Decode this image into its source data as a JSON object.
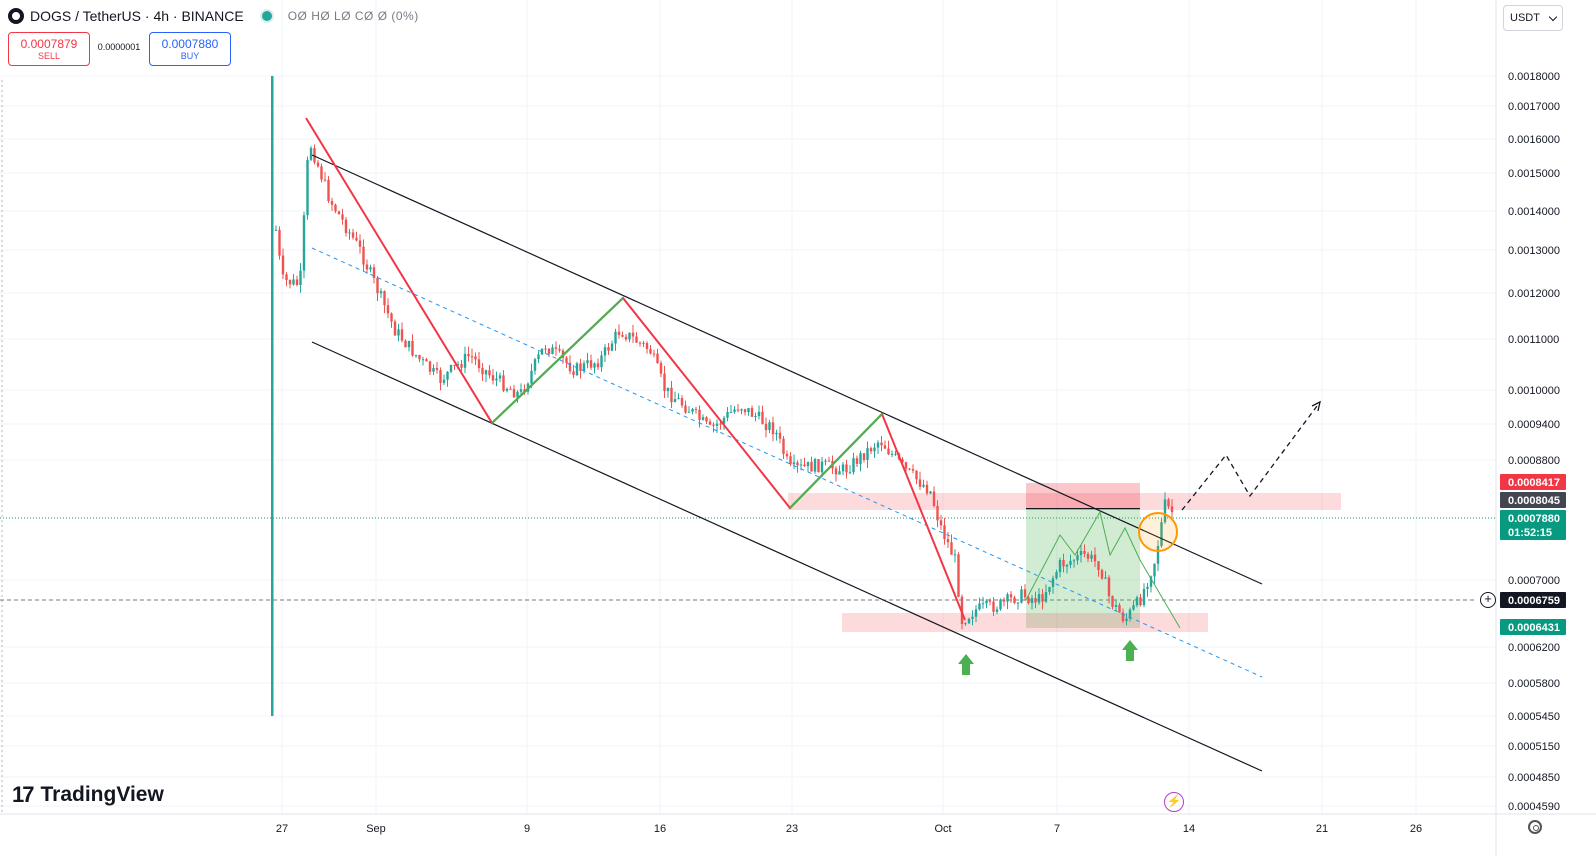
{
  "header": {
    "symbol": "DOGS",
    "separator": "/",
    "quote": "TetherUS",
    "interval": "4h",
    "exchange": "BINANCE",
    "title": "DOGS / TetherUS · 4h · BINANCE",
    "ohlc": "OØ HØ LØ CØ Ø (0%)"
  },
  "trade": {
    "sell_price": "0.0007879",
    "sell_label": "SELL",
    "spread": "0.0000001",
    "buy_price": "0.0007880",
    "buy_label": "BUY"
  },
  "currency": {
    "label": "USDT"
  },
  "brand": {
    "name": "TradingView",
    "mark": "17"
  },
  "colors": {
    "up": "#26a69a",
    "down": "#ef5350",
    "price_line": "#089981",
    "red_label": "#f23645",
    "dark_label": "#434651",
    "green_label": "#089981"
  },
  "price_axis": {
    "ticks": [
      "0.0018000",
      "0.0017000",
      "0.0016000",
      "0.0015000",
      "0.0014000",
      "0.0013000",
      "0.0012000",
      "0.0011000",
      "0.0010000",
      "0.0009400",
      "0.0008800",
      "0.0007000",
      "0.0006200",
      "0.0005800",
      "0.0005450",
      "0.0005150",
      "0.0004850",
      "0.0004590"
    ],
    "labels": [
      {
        "text": "0.0008417",
        "bg": "#f23645"
      },
      {
        "text": "0.0008045",
        "bg": "#434651"
      },
      {
        "text": "0.0007880",
        "bg": "#089981"
      },
      {
        "text": "01:52:15",
        "bg": "#089981"
      },
      {
        "text": "0.0006759",
        "bg": "#131722"
      },
      {
        "text": "0.0006431",
        "bg": "#089981"
      }
    ]
  },
  "time_axis": {
    "ticks": [
      "27",
      "Sep",
      "9",
      "16",
      "23",
      "Oct",
      "7",
      "14",
      "21",
      "26"
    ]
  },
  "chart_data": {
    "type": "candlestick",
    "symbol": "DOGS/USDT",
    "timeframe": "4h",
    "x_ticks": [
      "27",
      "Sep",
      "9",
      "16",
      "23",
      "Oct",
      "7",
      "14",
      "21",
      "26"
    ],
    "y_ticks": [
      0.0018,
      0.0017,
      0.0016,
      0.0015,
      0.0014,
      0.0013,
      0.0012,
      0.0011,
      0.001,
      0.00094,
      0.00088,
      0.0007,
      0.00062,
      0.00058,
      0.000545,
      0.000515,
      0.000485,
      0.000459
    ],
    "scale": "log",
    "last_price": 0.000788,
    "crosshair_price": 0.0006759,
    "position_target": 0.0008417,
    "position_entry": 0.0008045,
    "position_stop": 0.0006431,
    "countdown": "01:52:15"
  }
}
